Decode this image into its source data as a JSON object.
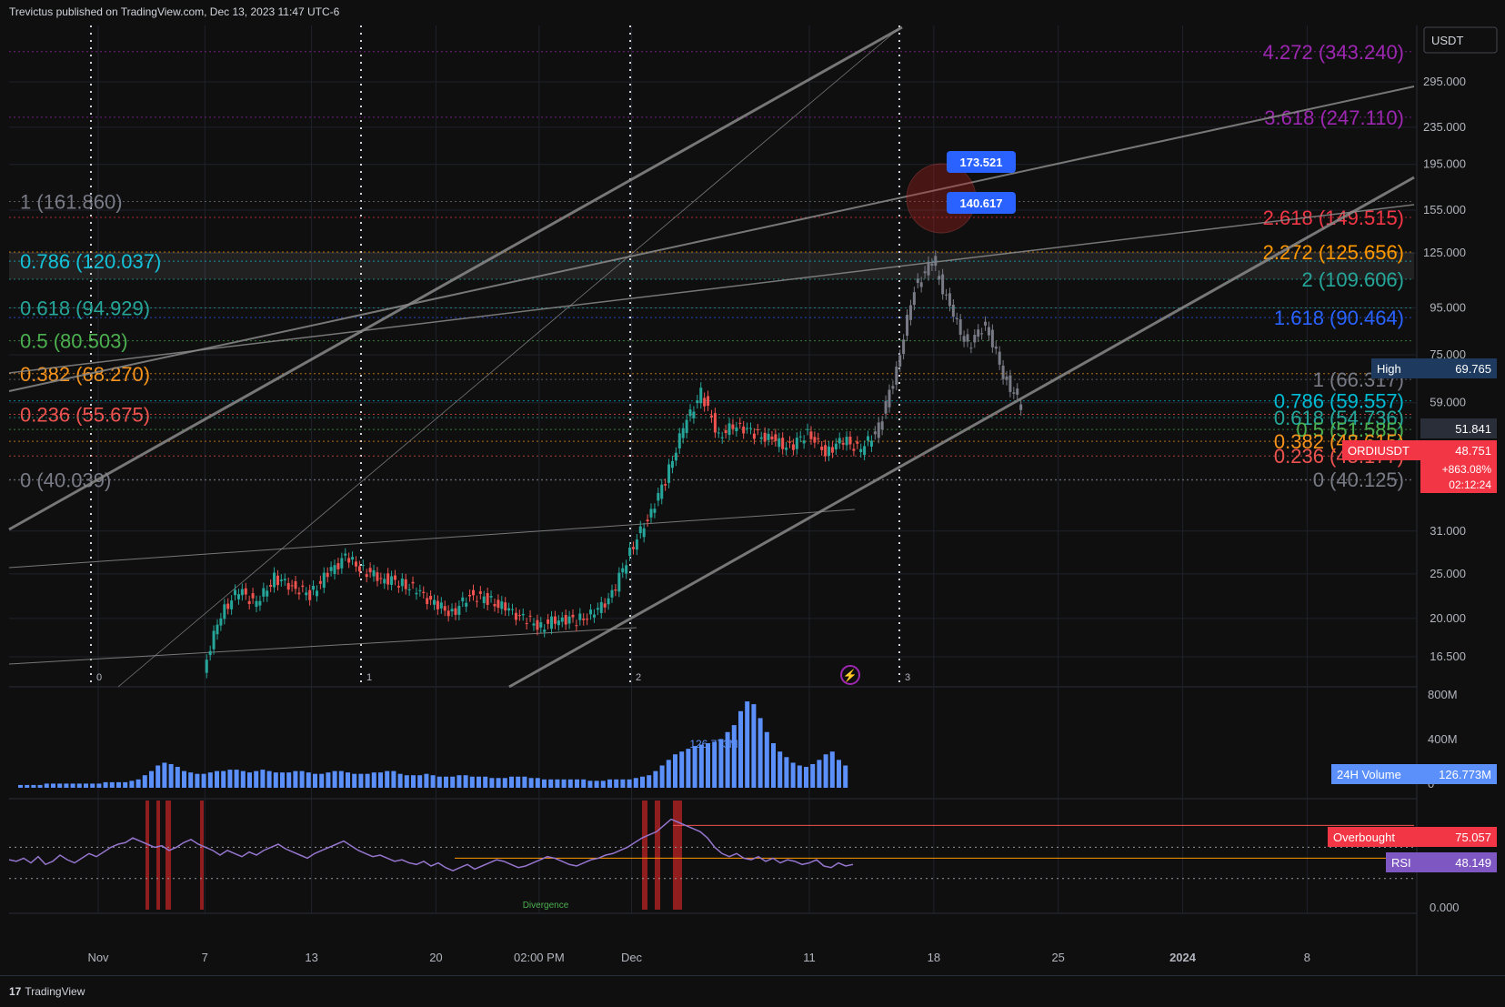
{
  "header": {
    "caption": "Trevictus published on TradingView.com, Dec 13, 2023 11:47 UTC-6"
  },
  "footer": {
    "brand": "TradingView",
    "logo_text": "17"
  },
  "colors": {
    "background": "#0f0f0f",
    "grid": "#1f222b",
    "channel": "#8a8a8a",
    "candle_up": "#26a69a",
    "candle_down": "#ef5350",
    "volume": "#5b8ff9",
    "rsi_line": "#9575cd",
    "red_zone": "#b22222"
  },
  "chart_data": [
    {
      "type": "candlestick",
      "symbol": "ORDIUSDT",
      "quote_currency": "USDT",
      "price_axis_ticks": [
        "295.000",
        "235.000",
        "195.000",
        "155.000",
        "125.000",
        "95.000",
        "75.000",
        "59.000",
        "31.000",
        "25.000",
        "20.000",
        "16.500"
      ],
      "time_axis_ticks": [
        "Nov",
        "7",
        "13",
        "20",
        "02:00 PM",
        "Dec",
        "11",
        "18",
        "25",
        "2024",
        "8"
      ],
      "scale": "log",
      "close_path": [
        {
          "x": "Nov 7",
          "y": 15.5
        },
        {
          "x": "Nov 8",
          "y": 20.5
        },
        {
          "x": "Nov 9",
          "y": 23.0
        },
        {
          "x": "Nov 10",
          "y": 21.5
        },
        {
          "x": "Nov 11",
          "y": 24.5
        },
        {
          "x": "Nov 12",
          "y": 23.5
        },
        {
          "x": "Nov 13",
          "y": 22.5
        },
        {
          "x": "Nov 14",
          "y": 25.0
        },
        {
          "x": "Nov 15",
          "y": 27.2
        },
        {
          "x": "Nov 16",
          "y": 25.5
        },
        {
          "x": "Nov 17",
          "y": 24.5
        },
        {
          "x": "Nov 18",
          "y": 24.0
        },
        {
          "x": "Nov 19",
          "y": 23.0
        },
        {
          "x": "Nov 20",
          "y": 21.5
        },
        {
          "x": "Nov 21",
          "y": 20.5
        },
        {
          "x": "Nov 22",
          "y": 22.5
        },
        {
          "x": "Nov 23",
          "y": 22.0
        },
        {
          "x": "Nov 24",
          "y": 21.0
        },
        {
          "x": "Nov 25",
          "y": 20.0
        },
        {
          "x": "Nov 26",
          "y": 19.2
        },
        {
          "x": "Nov 27",
          "y": 20.0
        },
        {
          "x": "Nov 28",
          "y": 19.8
        },
        {
          "x": "Nov 29",
          "y": 20.5
        },
        {
          "x": "Nov 30",
          "y": 22.5
        },
        {
          "x": "Dec 1",
          "y": 28.0
        },
        {
          "x": "Dec 2",
          "y": 33.0
        },
        {
          "x": "Dec 3",
          "y": 40.0
        },
        {
          "x": "Dec 4",
          "y": 52.0
        },
        {
          "x": "Dec 5",
          "y": 62.0
        },
        {
          "x": "Dec 6",
          "y": 50.0
        },
        {
          "x": "Dec 7",
          "y": 53.0
        },
        {
          "x": "Dec 8",
          "y": 50.5
        },
        {
          "x": "Dec 9",
          "y": 49.0
        },
        {
          "x": "Dec 10",
          "y": 47.0
        },
        {
          "x": "Dec 11",
          "y": 51.0
        },
        {
          "x": "Dec 12",
          "y": 46.0
        },
        {
          "x": "Dec 13",
          "y": 49.0
        },
        {
          "x": "Dec 14",
          "y": 46.5
        },
        {
          "x": "Dec 15",
          "y": 52.0
        },
        {
          "x": "Dec 16",
          "y": 70.0
        },
        {
          "x": "Dec 17",
          "y": 105.0
        },
        {
          "x": "Dec 18",
          "y": 120.0
        },
        {
          "x": "Dec 19",
          "y": 95.0
        },
        {
          "x": "Dec 20",
          "y": 78.0
        },
        {
          "x": "Dec 21",
          "y": 88.0
        },
        {
          "x": "Dec 22",
          "y": 68.0
        },
        {
          "x": "Dec 23",
          "y": 58.0
        }
      ],
      "fib_left": [
        {
          "label": "1 (161.860)",
          "price": 161.86,
          "color": "#787b86"
        },
        {
          "label": "0.786 (120.037)",
          "price": 120.037,
          "color": "#00bcd4"
        },
        {
          "label": "0.618 (94.929)",
          "price": 94.929,
          "color": "#26a69a"
        },
        {
          "label": "0.5 (80.503)",
          "price": 80.503,
          "color": "#4caf50"
        },
        {
          "label": "0.382 (68.270)",
          "price": 68.27,
          "color": "#f7931a"
        },
        {
          "label": "0.236 (55.675)",
          "price": 55.675,
          "color": "#ef5350"
        },
        {
          "label": "0 (40.039)",
          "price": 40.039,
          "color": "#787b86"
        }
      ],
      "fib_right": [
        {
          "label": "4.272 (343.240)",
          "price": 343.24,
          "color": "#9c27b0"
        },
        {
          "label": "3.618 (247.110)",
          "price": 247.11,
          "color": "#9c27b0"
        },
        {
          "label": "2.618 (149.515)",
          "price": 149.515,
          "color": "#f23645"
        },
        {
          "label": "2.272 (125.656)",
          "price": 125.656,
          "color": "#ff9800"
        },
        {
          "label": "2 (109.606)",
          "price": 109.606,
          "color": "#26a69a"
        },
        {
          "label": "1.618 (90.464)",
          "price": 90.464,
          "color": "#2962ff"
        },
        {
          "label": "1 (66.317)",
          "price": 66.317,
          "color": "#787b86"
        },
        {
          "label": "0.786 (59.557)",
          "price": 59.557,
          "color": "#00bcd4"
        },
        {
          "label": "0.618 (54.736)",
          "price": 54.736,
          "color": "#26a69a"
        },
        {
          "label": "0.5 (51.585)",
          "price": 51.585,
          "color": "#4caf50"
        },
        {
          "label": "0.382 (48.615)",
          "price": 48.615,
          "color": "#f7931a"
        },
        {
          "label": "0.236 (45.177)",
          "price": 45.177,
          "color": "#ef5350"
        },
        {
          "label": "0 (40.125)",
          "price": 40.125,
          "color": "#787b86"
        }
      ],
      "cycle_markers": [
        "0",
        "1",
        "2",
        "3"
      ],
      "price_callouts": [
        "173.521",
        "140.617"
      ],
      "price_badges": {
        "high_label": "High",
        "high_value": "69.765",
        "level_value": "51.841",
        "symbol": "ORDIUSDT",
        "last_price": "48.751",
        "change": "+863.08%",
        "countdown": "02:12:24"
      }
    },
    {
      "type": "bar",
      "name": "24H Volume",
      "axis_ticks": [
        "800M",
        "400M",
        "0"
      ],
      "peak_label": "126.773M",
      "legend_label": "24H Volume",
      "legend_value": "126.773M",
      "values": [
        2,
        2,
        2,
        2,
        3,
        3,
        3,
        3,
        3,
        3,
        3,
        3,
        3,
        4,
        4,
        4,
        4,
        5,
        6,
        9,
        12,
        16,
        18,
        17,
        15,
        12,
        11,
        10,
        10,
        11,
        12,
        12,
        13,
        13,
        12,
        11,
        12,
        13,
        12,
        11,
        11,
        11,
        12,
        12,
        11,
        10,
        10,
        11,
        12,
        12,
        11,
        10,
        10,
        10,
        11,
        11,
        12,
        12,
        10,
        9,
        9,
        9,
        10,
        9,
        8,
        8,
        8,
        9,
        9,
        8,
        8,
        8,
        7,
        7,
        7,
        8,
        8,
        8,
        7,
        7,
        6,
        6,
        6,
        6,
        6,
        6,
        6,
        5,
        5,
        5,
        6,
        6,
        6,
        6,
        7,
        8,
        9,
        12,
        16,
        20,
        24,
        26,
        28,
        30,
        31,
        32,
        33,
        35,
        40,
        45,
        55,
        62,
        60,
        50,
        40,
        32,
        26,
        22,
        18,
        16,
        15,
        17,
        20,
        24,
        26,
        20,
        16
      ]
    },
    {
      "type": "line",
      "name": "RSI",
      "legend_label": "RSI",
      "legend_value": "48.149",
      "overbought_label": "Overbought",
      "overbought_value": "75.057",
      "axis_ticks": [
        "0.000"
      ],
      "divergence_label": "Divergence",
      "values": [
        52,
        51,
        53,
        50,
        54,
        49,
        51,
        55,
        52,
        50,
        53,
        56,
        54,
        57,
        60,
        62,
        63,
        66,
        64,
        62,
        60,
        61,
        58,
        60,
        63,
        65,
        62,
        60,
        58,
        55,
        58,
        56,
        54,
        57,
        55,
        58,
        60,
        62,
        59,
        57,
        55,
        53,
        56,
        58,
        60,
        62,
        64,
        61,
        58,
        56,
        54,
        55,
        53,
        51,
        52,
        50,
        49,
        51,
        48,
        50,
        47,
        45,
        47,
        49,
        46,
        48,
        50,
        52,
        51,
        49,
        47,
        48,
        50,
        52,
        54,
        53,
        51,
        49,
        48,
        50,
        52,
        53,
        55,
        56,
        58,
        60,
        63,
        66,
        68,
        70,
        74,
        78,
        76,
        74,
        72,
        70,
        66,
        60,
        56,
        54,
        56,
        53,
        52,
        54,
        51,
        53,
        50,
        52,
        51,
        49,
        50,
        52,
        48,
        47,
        50,
        48,
        49
      ]
    }
  ]
}
